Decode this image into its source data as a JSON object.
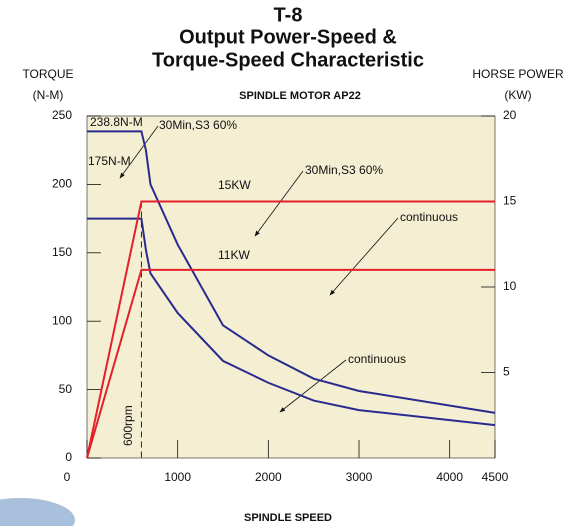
{
  "chart_data": {
    "type": "line",
    "title": "T-8",
    "title_lines": [
      "Output Power-Speed &",
      "Torque-Speed Characteristic"
    ],
    "subtitle": "SPINDLE MOTOR AP22",
    "y_label": [
      "TORQUE",
      "(N-M)"
    ],
    "y2_label": [
      "HORSE POWER",
      "(KW)"
    ],
    "x_label": "SPINDLE SPEED",
    "xlim": [
      0,
      4500
    ],
    "xticks": [
      0,
      1000,
      2000,
      3000,
      4000,
      4500
    ],
    "ylim": [
      0,
      250
    ],
    "yticks": [
      0,
      50,
      100,
      150,
      200,
      250
    ],
    "y2lim": [
      0,
      20
    ],
    "y2ticks": [
      5,
      10,
      15,
      20
    ],
    "grid": false,
    "series": [
      {
        "name": "30Min,S3 60%",
        "label": "238.8N-M",
        "color": "#2a2a8e",
        "axis": "y",
        "x": [
          0,
          600,
          650,
          700,
          1000,
          1500,
          2000,
          2500,
          3000,
          4500
        ],
        "values": [
          238.8,
          238.8,
          225,
          200,
          156,
          97,
          75,
          58,
          49,
          33
        ]
      },
      {
        "name": "continuous",
        "label": "175N-M",
        "color": "#2a2a8e",
        "axis": "y",
        "x": [
          0,
          600,
          650,
          700,
          1000,
          1500,
          2000,
          2500,
          3000,
          4500
        ],
        "values": [
          175,
          175,
          152,
          135,
          106,
          71,
          55,
          42,
          35,
          24
        ]
      },
      {
        "name": "30Min,S3 60%",
        "label": "15KW",
        "color": "#e3202b",
        "axis": "y2",
        "x": [
          0,
          600,
          4500
        ],
        "values": [
          0,
          15,
          15
        ]
      },
      {
        "name": "continuous",
        "label": "11KW",
        "color": "#e3202b",
        "axis": "y2",
        "x": [
          0,
          600,
          4500
        ],
        "values": [
          0,
          11,
          11
        ]
      }
    ],
    "marker_x": 600,
    "marker_label": "600rpm"
  }
}
